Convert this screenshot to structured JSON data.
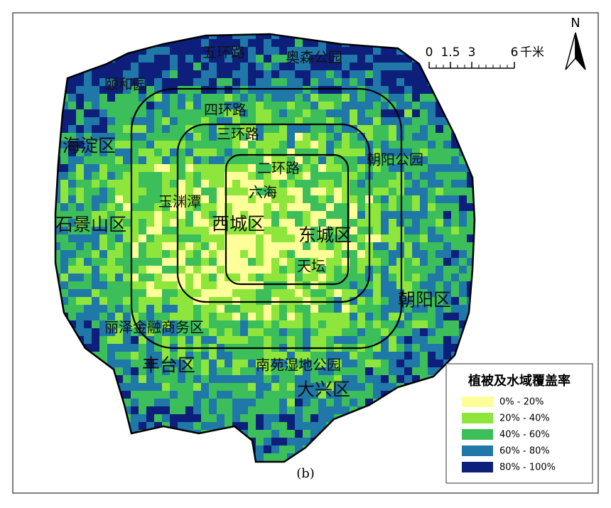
{
  "map": {
    "caption": "(b)",
    "north": "N",
    "scale_bar": {
      "ticks": [
        0,
        1.5,
        3,
        6
      ],
      "unit": "千米"
    },
    "labels": [
      "五环路",
      "奥森公园",
      "颐和园",
      "四环路",
      "海淀区",
      "三环路",
      "朝阳公园",
      "二环路",
      "六海",
      "玉渊潭",
      "石景山区",
      "西城区",
      "东城区",
      "天坛",
      "朝阳区",
      "丽泽金融商务区",
      "丰台区",
      "南苑湿地公园",
      "大兴区"
    ],
    "legend": {
      "title": "植被及水域覆盖率",
      "items": [
        {
          "label": "0% - 20%",
          "color": "#ffff99"
        },
        {
          "label": "20% - 40%",
          "color": "#8ee63c"
        },
        {
          "label": "40% - 60%",
          "color": "#3cbf5a"
        },
        {
          "label": "60% - 80%",
          "color": "#1f78a8"
        },
        {
          "label": "80% - 100%",
          "color": "#0d1f7a"
        }
      ]
    }
  }
}
